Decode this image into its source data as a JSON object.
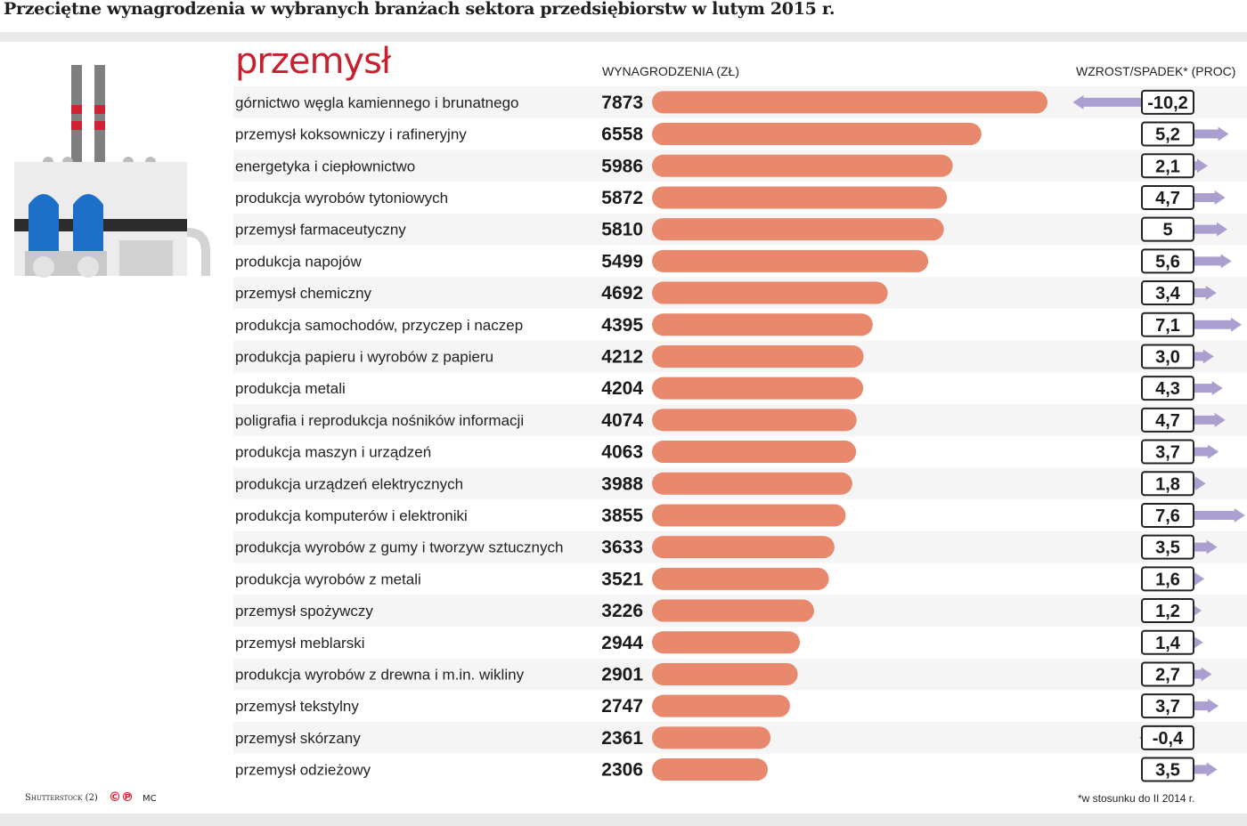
{
  "header": {
    "title": "Przeciętne wynagrodzenia w wybranych branżach sektora przedsiębiorstw w lutym 2015 r.",
    "section": "przemysł",
    "wages_column_label": "WYNAGRODZENIA (ZŁ)",
    "change_column_label": "WZROST/SPADEK* (PROC)"
  },
  "footer": {
    "source": "Shutterstock (2)",
    "logo": "©℗",
    "author": "MC",
    "footnote": "*w stosunku do II 2014 r."
  },
  "icons": {
    "illustration": "factory-icon"
  },
  "colors": {
    "title_accent": "#c8202f",
    "wage_bar": "#e8886d",
    "change_arrow": "#ab9fd0",
    "zebra_row": "#f5f5f5"
  },
  "chart_data": {
    "type": "bar",
    "orientation": "horizontal",
    "categories": [
      "górnictwo węgla kamiennego i brunatnego",
      "przemysł koksowniczy i rafineryjny",
      "energetyka i ciepłownictwo",
      "produkcja wyrobów tytoniowych",
      "przemysł farmaceutyczny",
      "produkcja napojów",
      "przemysł chemiczny",
      "produkcja samochodów, przyczep i naczep",
      "produkcja papieru i wyrobów z papieru",
      "produkcja metali",
      "poligrafia i reprodukcja nośników informacji",
      "produkcja maszyn i urządzeń",
      "produkcja urządzeń elektrycznych",
      "produkcja komputerów i elektroniki",
      "produkcja wyrobów z gumy i tworzyw sztucznych",
      "produkcja wyrobów z metali",
      "przemysł spożywczy",
      "przemysł meblarski",
      "produkcja wyrobów z drewna i m.in. wikliny",
      "przemysł tekstylny",
      "przemysł skórzany",
      "przemysł odzieżowy"
    ],
    "series": [
      {
        "name": "WYNAGRODZENIA (ZŁ)",
        "values": [
          7873,
          6558,
          5986,
          5872,
          5810,
          5499,
          4692,
          4395,
          4212,
          4204,
          4074,
          4063,
          3988,
          3855,
          3633,
          3521,
          3226,
          2944,
          2901,
          2747,
          2361,
          2306
        ]
      },
      {
        "name": "WZROST/SPADEK* (PROC)",
        "values": [
          -10.2,
          5.2,
          2.1,
          4.7,
          5,
          5.6,
          3.4,
          7.1,
          3.0,
          4.3,
          4.7,
          3.7,
          1.8,
          7.6,
          3.5,
          1.6,
          1.2,
          1.4,
          2.7,
          3.7,
          -0.4,
          3.5
        ],
        "labels": [
          "-10,2",
          "5,2",
          "2,1",
          "4,7",
          "5",
          "5,6",
          "3,4",
          "7,1",
          "3,0",
          "4,3",
          "4,7",
          "3,7",
          "1,8",
          "7,6",
          "3,5",
          "1,6",
          "1,2",
          "1,4",
          "2,7",
          "3,7",
          "-0,4",
          "3,5"
        ]
      }
    ],
    "grid": false,
    "legend": "none"
  }
}
